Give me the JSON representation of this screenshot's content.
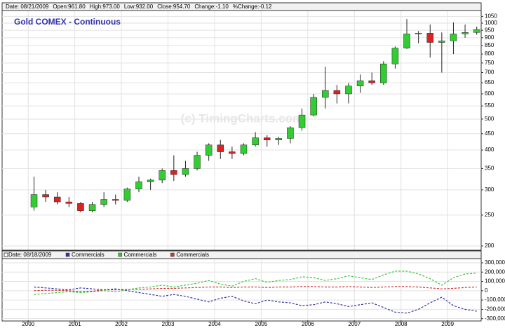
{
  "chart_data": [
    {
      "type": "candlestick",
      "title": "Gold COMEX - Continuous",
      "watermark": "(c) TimingCharts.com",
      "header": [
        {
          "text": "Date: 08/21/2009",
          "color": "#000000"
        },
        {
          "text": "Open:961.80",
          "color": "#000000"
        },
        {
          "text": "High:973.00",
          "color": "#000000"
        },
        {
          "text": "Low:932.00",
          "color": "#000000"
        },
        {
          "text": "Close:954.70",
          "color": "#000000"
        },
        {
          "text": "Change:",
          "color": "#000000"
        },
        {
          "text": "-1.10",
          "color": "#dd0000"
        },
        {
          "text": "%Change:",
          "color": "#000000"
        },
        {
          "text": "-0.12",
          "color": "#dd0000"
        }
      ],
      "up_color": "#33cc33",
      "down_color": "#dd2222",
      "log_scale": true,
      "grid": true,
      "xlim": [
        1999.44,
        2009.72
      ],
      "ylim": [
        195,
        1090
      ],
      "yticks": [
        200,
        250,
        300,
        350,
        400,
        450,
        500,
        550,
        600,
        650,
        700,
        750,
        800,
        850,
        900,
        950,
        1000,
        1050
      ],
      "x": [
        2000.125,
        2000.375,
        2000.625,
        2000.875,
        2001.125,
        2001.375,
        2001.625,
        2001.875,
        2002.125,
        2002.375,
        2002.625,
        2002.875,
        2003.125,
        2003.375,
        2003.625,
        2003.875,
        2004.125,
        2004.375,
        2004.625,
        2004.875,
        2005.125,
        2005.375,
        2005.625,
        2005.875,
        2006.125,
        2006.375,
        2006.625,
        2006.875,
        2007.125,
        2007.375,
        2007.625,
        2007.875,
        2008.125,
        2008.375,
        2008.625,
        2008.875,
        2009.125,
        2009.375,
        2009.625
      ],
      "open": [
        265,
        290,
        285,
        275,
        272,
        258,
        270,
        280,
        278,
        302,
        318,
        322,
        345,
        335,
        350,
        385,
        415,
        395,
        390,
        415,
        437,
        430,
        435,
        470,
        515,
        585,
        615,
        600,
        635,
        660,
        650,
        745,
        835,
        925,
        930,
        870,
        880,
        925,
        935
      ],
      "high": [
        330,
        300,
        295,
        285,
        275,
        275,
        295,
        290,
        305,
        330,
        325,
        350,
        385,
        370,
        395,
        420,
        430,
        410,
        420,
        455,
        445,
        440,
        475,
        540,
        600,
        730,
        640,
        650,
        690,
        700,
        760,
        845,
        1030,
        945,
        990,
        935,
        1005,
        990,
        975
      ],
      "low": [
        258,
        275,
        270,
        265,
        255,
        255,
        265,
        270,
        275,
        295,
        300,
        315,
        320,
        330,
        345,
        370,
        375,
        375,
        385,
        410,
        410,
        415,
        420,
        460,
        510,
        540,
        560,
        560,
        605,
        640,
        640,
        720,
        830,
        865,
        780,
        700,
        800,
        900,
        920
      ],
      "close": [
        290,
        285,
        275,
        272,
        258,
        270,
        280,
        278,
        302,
        318,
        322,
        345,
        335,
        350,
        385,
        415,
        395,
        390,
        415,
        437,
        430,
        435,
        470,
        515,
        585,
        615,
        600,
        635,
        660,
        650,
        745,
        835,
        925,
        930,
        870,
        880,
        925,
        935,
        955
      ]
    },
    {
      "type": "line",
      "date_label": "Date: 08/18/2009",
      "grid": true,
      "xlim": [
        1999.44,
        2009.72
      ],
      "xticks": [
        2000,
        2001,
        2002,
        2003,
        2004,
        2005,
        2006,
        2007,
        2008,
        2009
      ],
      "ylim": [
        -310000,
        330000
      ],
      "yticks": [
        {
          "value": 300000,
          "label": "300,000"
        },
        {
          "value": 200000,
          "label": "200,000"
        },
        {
          "value": 100000,
          "label": "100,000"
        },
        0,
        {
          "value": -100000,
          "label": "-100,000"
        },
        {
          "value": -200000,
          "label": "-200,000"
        },
        {
          "value": -300000,
          "label": "-300,000"
        }
      ],
      "x": [
        2000.125,
        2000.375,
        2000.625,
        2000.875,
        2001.125,
        2001.375,
        2001.625,
        2001.875,
        2002.125,
        2002.375,
        2002.625,
        2002.875,
        2003.125,
        2003.375,
        2003.625,
        2003.875,
        2004.125,
        2004.375,
        2004.625,
        2004.875,
        2005.125,
        2005.375,
        2005.625,
        2005.875,
        2006.125,
        2006.375,
        2006.625,
        2006.875,
        2007.125,
        2007.375,
        2007.625,
        2007.875,
        2008.125,
        2008.375,
        2008.625,
        2008.875,
        2009.125,
        2009.375,
        2009.625
      ],
      "series": [
        {
          "name": "Commercials",
          "color": "#3333aa",
          "values": [
            40000,
            30000,
            20000,
            10000,
            30000,
            20000,
            10000,
            20000,
            0,
            -20000,
            -40000,
            -60000,
            -40000,
            -60000,
            -90000,
            -120000,
            -80000,
            -60000,
            -110000,
            -140000,
            -100000,
            -120000,
            -130000,
            -160000,
            -150000,
            -120000,
            -140000,
            -170000,
            -150000,
            -130000,
            -180000,
            -230000,
            -240000,
            -200000,
            -130000,
            -70000,
            -160000,
            -200000,
            -220000
          ]
        },
        {
          "name": "Commercials",
          "color": "#33cc33",
          "values": [
            -40000,
            -30000,
            -20000,
            -10000,
            -20000,
            -10000,
            0,
            -10000,
            10000,
            30000,
            40000,
            60000,
            40000,
            60000,
            80000,
            110000,
            70000,
            50000,
            100000,
            130000,
            90000,
            110000,
            120000,
            150000,
            140000,
            110000,
            130000,
            160000,
            140000,
            120000,
            170000,
            210000,
            210000,
            180000,
            130000,
            60000,
            140000,
            180000,
            190000
          ]
        },
        {
          "name": "Commercials",
          "color": "#cc3333",
          "values": [
            0,
            5000,
            5000,
            0,
            -10000,
            -5000,
            10000,
            10000,
            15000,
            15000,
            20000,
            25000,
            25000,
            30000,
            35000,
            40000,
            40000,
            35000,
            40000,
            40000,
            35000,
            40000,
            40000,
            45000,
            45000,
            40000,
            40000,
            45000,
            40000,
            35000,
            40000,
            45000,
            45000,
            40000,
            30000,
            20000,
            25000,
            35000,
            40000
          ]
        }
      ]
    }
  ]
}
